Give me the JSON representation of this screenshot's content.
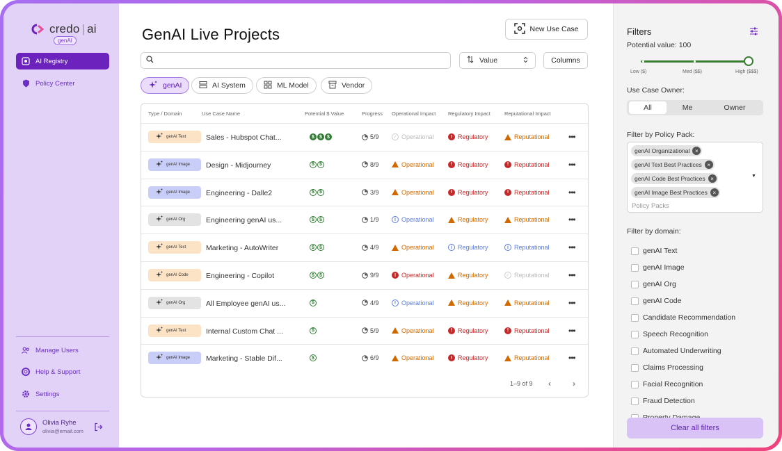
{
  "brand": {
    "name": "credo",
    "suffix": "ai",
    "badge": "genAI"
  },
  "sidebar": {
    "items": [
      {
        "label": "AI Registry",
        "icon": "registry-icon"
      },
      {
        "label": "Policy Center",
        "icon": "shield-icon"
      }
    ],
    "bottom_items": [
      {
        "label": "Manage Users",
        "icon": "users-icon"
      },
      {
        "label": "Help & Support",
        "icon": "lifebuoy-icon"
      },
      {
        "label": "Settings",
        "icon": "gear-icon"
      }
    ],
    "user": {
      "name": "Olivia Ryhe",
      "email": "olivia@email.com"
    }
  },
  "main": {
    "title": "GenAI Live Projects",
    "new_button": "New Use Case",
    "search_placeholder": "",
    "sort_label": "Value",
    "columns_button": "Columns",
    "chips": [
      {
        "label": "genAI",
        "icon": "sparkle-icon",
        "active": true
      },
      {
        "label": "AI System",
        "icon": "server-icon",
        "active": false
      },
      {
        "label": "ML Model",
        "icon": "model-icon",
        "active": false
      },
      {
        "label": "Vendor",
        "icon": "vendor-icon",
        "active": false
      }
    ],
    "table": {
      "headers": [
        "Type / Domain",
        "Use Case Name",
        "Potential $ Value",
        "Progress",
        "Operational Impact",
        "Regulatory Impact",
        "Reputational Impact"
      ],
      "rows": [
        {
          "domain": "genAI Text",
          "kind": "text",
          "name": "Sales - Hubspot Chat...",
          "value": 3,
          "progress": "5/9",
          "operational": "Operational",
          "op_level": "dis",
          "regulatory": "Regulatory",
          "reg_level": "err",
          "reputational": "Reputational",
          "rep_level": "warn"
        },
        {
          "domain": "genAI Image",
          "kind": "image",
          "name": "Design - Midjourney",
          "value": 2,
          "progress": "8/9",
          "operational": "Operational",
          "op_level": "warn",
          "regulatory": "Regulatory",
          "reg_level": "err",
          "reputational": "Reputational",
          "rep_level": "err"
        },
        {
          "domain": "genAI Image",
          "kind": "image",
          "name": "Engineering - Dalle2",
          "value": 2,
          "progress": "3/9",
          "operational": "Operational",
          "op_level": "warn",
          "regulatory": "Regulatory",
          "reg_level": "err",
          "reputational": "Reputational",
          "rep_level": "err"
        },
        {
          "domain": "genAI Org",
          "kind": "org",
          "name": "Engineering genAI us...",
          "value": 2,
          "progress": "1/9",
          "operational": "Operational",
          "op_level": "info",
          "regulatory": "Regulatory",
          "reg_level": "warn",
          "reputational": "Reputational",
          "rep_level": "warn"
        },
        {
          "domain": "genAI Text",
          "kind": "text",
          "name": "Marketing - AutoWriter",
          "value": 2,
          "progress": "4/9",
          "operational": "Operational",
          "op_level": "warn",
          "regulatory": "Regulatory",
          "reg_level": "info",
          "reputational": "Reputational",
          "rep_level": "info"
        },
        {
          "domain": "genAI Code",
          "kind": "code",
          "name": "Engineering - Copilot",
          "value": 2,
          "progress": "9/9",
          "operational": "Operational",
          "op_level": "err",
          "regulatory": "Regulatory",
          "reg_level": "warn",
          "reputational": "Reputational",
          "rep_level": "dis"
        },
        {
          "domain": "genAI Org",
          "kind": "org",
          "name": "All Employee genAI us...",
          "value": 1,
          "progress": "4/9",
          "operational": "Operational",
          "op_level": "info",
          "regulatory": "Regulatory",
          "reg_level": "warn",
          "reputational": "Reputational",
          "rep_level": "warn"
        },
        {
          "domain": "genAI Text",
          "kind": "text",
          "name": "Internal Custom Chat ...",
          "value": 1,
          "progress": "5/9",
          "operational": "Operational",
          "op_level": "warn",
          "regulatory": "Regulatory",
          "reg_level": "err",
          "reputational": "Reputational",
          "rep_level": "err"
        },
        {
          "domain": "genAI Image",
          "kind": "image",
          "name": "Marketing - Stable Dif...",
          "value": 1,
          "progress": "6/9",
          "operational": "Operational",
          "op_level": "warn",
          "regulatory": "Regulatory",
          "reg_level": "err",
          "reputational": "Reputational",
          "rep_level": "warn"
        }
      ],
      "pagination": "1–9 of 9"
    }
  },
  "filters": {
    "title": "Filters",
    "potential_value_label": "Potential value: 100",
    "potential_value": 100,
    "slider_labels": [
      "Low ($)",
      "Med ($$)",
      "High ($$$)"
    ],
    "owner_label": "Use Case Owner:",
    "owner_options": [
      "All",
      "Me",
      "Owner"
    ],
    "owner_selected": "All",
    "policy_pack_label": "Filter by Policy Pack:",
    "policy_packs": [
      "genAI Organizational",
      "genAI Text Best Practices",
      "genAI Code Best Practices",
      "genAI Image Best Practices"
    ],
    "policy_pack_placeholder": "Policy Packs",
    "domain_label": "Filter by domain:",
    "domains": [
      "genAI Text",
      "genAI Image",
      "genAI Org",
      "genAI Code",
      "Candidate Recommendation",
      "Speech Recognition",
      "Automated Underwriting",
      "Claims Processing",
      "Facial Recognition",
      "Fraud Detection",
      "Property Damage"
    ],
    "clear_button": "Clear all filters"
  },
  "colors": {
    "primary": "#6c22bd",
    "sidebar_bg": "#e3d2f7",
    "money": "#2e7d32",
    "warn": "#d06a00",
    "error": "#c62828",
    "info": "#5b7bd6"
  }
}
